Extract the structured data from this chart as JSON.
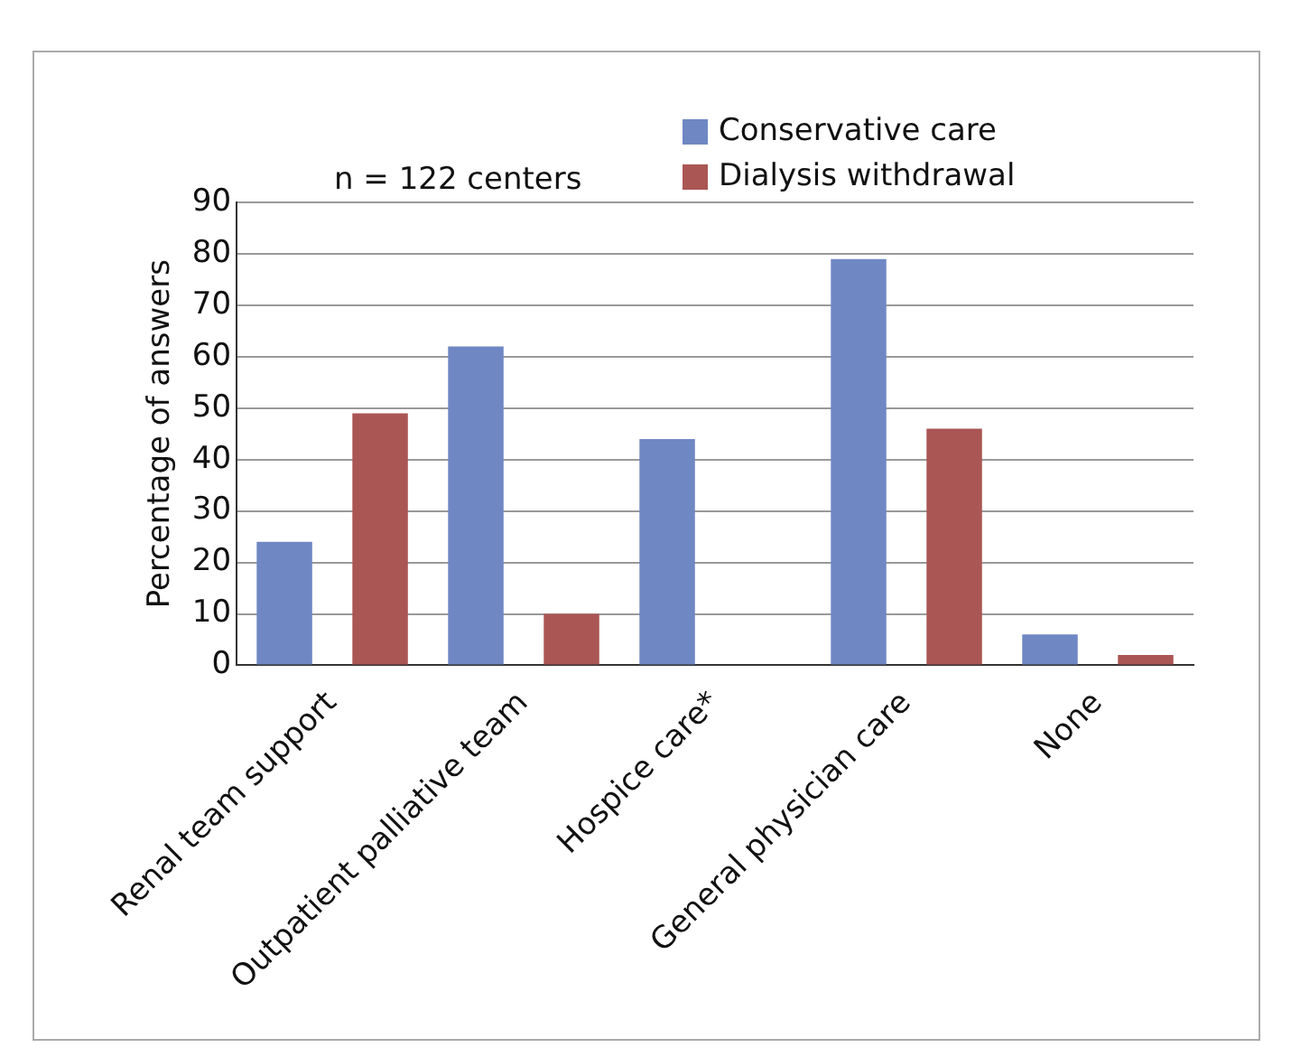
{
  "chart_data": {
    "type": "bar",
    "ylabel": "Percentage of answers",
    "annotations": [
      "n = 122 centers"
    ],
    "categories": [
      "Renal team support",
      "Outpatient palliative team",
      "Hospice care*",
      "General physician care",
      "None"
    ],
    "series": [
      {
        "name": "Conservative care",
        "color": "#6f87c3",
        "values": [
          24,
          62,
          44,
          79,
          6
        ]
      },
      {
        "name": "Dialysis withdrawal",
        "color": "#aa5654",
        "values": [
          49,
          10,
          null,
          46,
          2
        ]
      }
    ],
    "ylim": [
      0,
      90
    ],
    "yticks": [
      0,
      10,
      20,
      30,
      40,
      50,
      60,
      70,
      80,
      90
    ],
    "grid": "y",
    "legend": "top right"
  }
}
